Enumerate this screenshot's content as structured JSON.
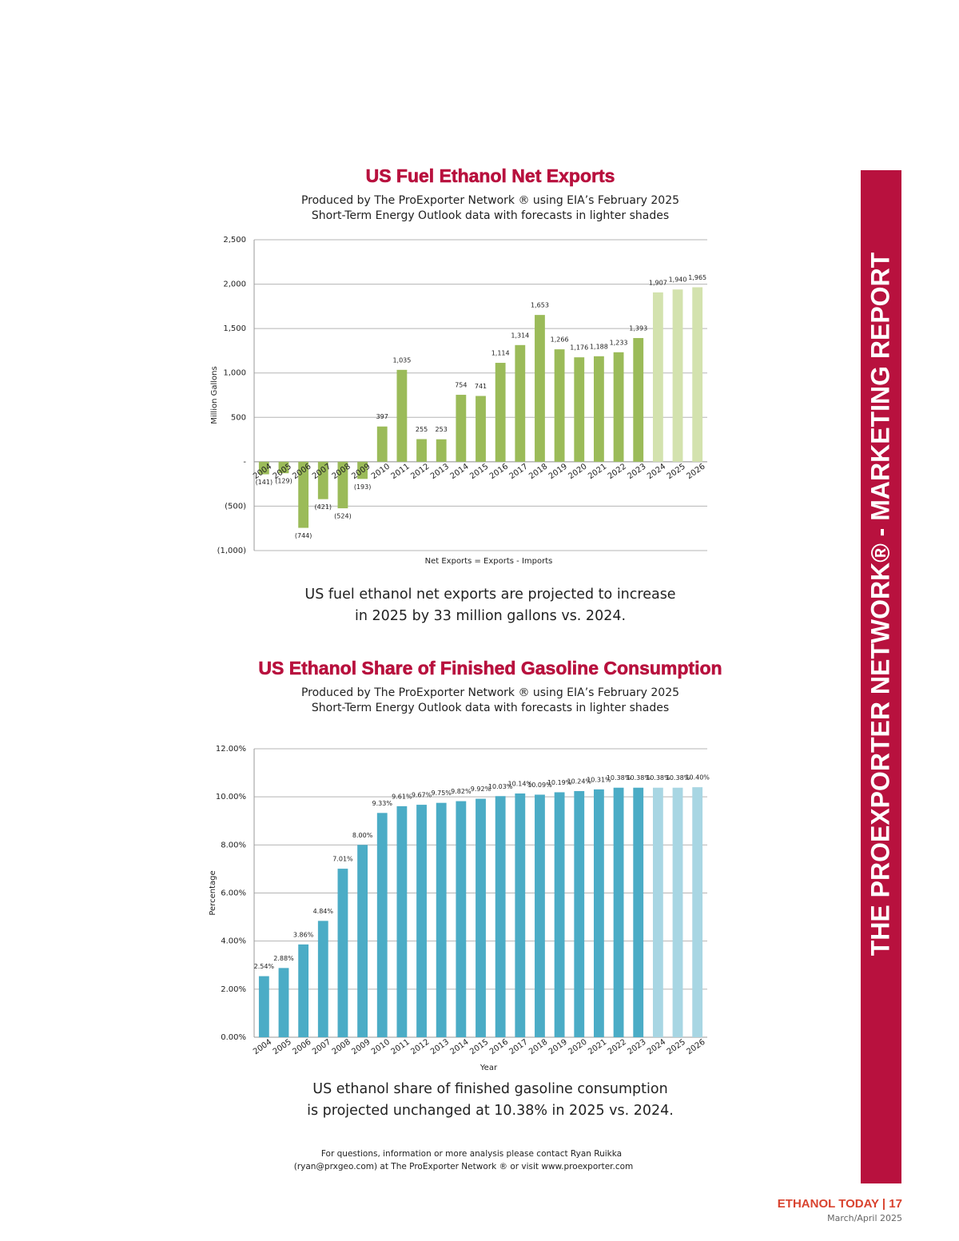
{
  "chart_data": [
    {
      "type": "bar",
      "title": "US Fuel Ethanol Net Exports",
      "subtitle": [
        "Produced by The ProExporter Network ® using EIA’s February 2025",
        "Short-Term Energy Outlook data with forecasts in lighter shades"
      ],
      "y_label": "Million Gallons",
      "x_label": "Net Exports = Exports - Imports",
      "categories": [
        "2004",
        "2005",
        "2006",
        "2007",
        "2008",
        "2009",
        "2010",
        "2011",
        "2012",
        "2013",
        "2014",
        "2015",
        "2016",
        "2017",
        "2018",
        "2019",
        "2020",
        "2021",
        "2022",
        "2023",
        "2024",
        "2025",
        "2026"
      ],
      "values": [
        -141,
        -129,
        -744,
        -421,
        -524,
        -193,
        397,
        1035,
        255,
        253,
        754,
        741,
        1114,
        1314,
        1653,
        1266,
        1176,
        1188,
        1233,
        1393,
        1907,
        1940,
        1965
      ],
      "value_labels": [
        "(141)",
        "(129)",
        "(744)",
        "(421)",
        "(524)",
        "(193)",
        "397",
        "1,035",
        "255",
        "253",
        "754",
        "741",
        "1,114",
        "1,314",
        "1,653",
        "1,266",
        "1,176",
        "1,188",
        "1,233",
        "1,393",
        "1,907",
        "1,940",
        "1,965"
      ],
      "colors": [
        "#9bbb59",
        "#9bbb59",
        "#9bbb59",
        "#9bbb59",
        "#9bbb59",
        "#9bbb59",
        "#9bbb59",
        "#9bbb59",
        "#9bbb59",
        "#9bbb59",
        "#9bbb59",
        "#9bbb59",
        "#9bbb59",
        "#9bbb59",
        "#9bbb59",
        "#9bbb59",
        "#9bbb59",
        "#9bbb59",
        "#9bbb59",
        "#9bbb59",
        "#d3e2ae",
        "#d3e2ae",
        "#d3e2ae"
      ],
      "ylim": [
        -1000,
        2500
      ],
      "yticks": [
        {
          "value": -1000,
          "label": "(1,000)"
        },
        {
          "value": -500,
          "label": "(500)"
        },
        {
          "value": 0,
          "label": "-"
        },
        500,
        {
          "value": 1000,
          "label": "1,000"
        },
        {
          "value": 1500,
          "label": "1,500"
        },
        {
          "value": 2000,
          "label": "2,000"
        },
        {
          "value": 2500,
          "label": "2,500"
        }
      ],
      "grid": true,
      "caption": [
        "US fuel ethanol net exports are projected to increase",
        "in 2025 by 33 million gallons vs. 2024."
      ]
    },
    {
      "type": "bar",
      "title": "US Ethanol Share of Finished Gasoline Consumption",
      "subtitle": [
        "Produced by The ProExporter Network ® using EIA’s February 2025",
        "Short-Term Energy Outlook data with forecasts in lighter shades"
      ],
      "y_label": "Percentage",
      "x_label": "Year",
      "categories": [
        "2004",
        "2005",
        "2006",
        "2007",
        "2008",
        "2009",
        "2010",
        "2011",
        "2012",
        "2013",
        "2014",
        "2015",
        "2016",
        "2017",
        "2018",
        "2019",
        "2020",
        "2021",
        "2022",
        "2023",
        "2024",
        "2025",
        "2026"
      ],
      "values": [
        2.54,
        2.88,
        3.86,
        4.84,
        7.01,
        8.0,
        9.33,
        9.61,
        9.67,
        9.75,
        9.82,
        9.92,
        10.03,
        10.14,
        10.09,
        10.19,
        10.24,
        10.31,
        10.38,
        10.38,
        10.38,
        10.38,
        10.4
      ],
      "value_labels": [
        "2.54%",
        "2.88%",
        "3.86%",
        "4.84%",
        "7.01%",
        "8.00%",
        "9.33%",
        "9.61%",
        "9.67%",
        "9.75%",
        "9.82%",
        "9.92%",
        "10.03%",
        "10.14%",
        "10.09%",
        "10.19%",
        "10.24%",
        "10.31%",
        "10.38%",
        "10.38%",
        "10.38%",
        "10.38%",
        "10.40%"
      ],
      "colors": [
        "#4bacc6",
        "#4bacc6",
        "#4bacc6",
        "#4bacc6",
        "#4bacc6",
        "#4bacc6",
        "#4bacc6",
        "#4bacc6",
        "#4bacc6",
        "#4bacc6",
        "#4bacc6",
        "#4bacc6",
        "#4bacc6",
        "#4bacc6",
        "#4bacc6",
        "#4bacc6",
        "#4bacc6",
        "#4bacc6",
        "#4bacc6",
        "#4bacc6",
        "#a8d6e3",
        "#a8d6e3",
        "#a8d6e3"
      ],
      "ylim": [
        0,
        12
      ],
      "yticks": [
        {
          "value": 0,
          "label": "0.00%"
        },
        {
          "value": 2,
          "label": "2.00%"
        },
        {
          "value": 4,
          "label": "4.00%"
        },
        {
          "value": 6,
          "label": "6.00%"
        },
        {
          "value": 8,
          "label": "8.00%"
        },
        {
          "value": 10,
          "label": "10.00%"
        },
        {
          "value": 12,
          "label": "12.00%"
        }
      ],
      "grid": true,
      "caption": [
        "US ethanol share of finished gasoline consumption",
        "is projected unchanged at 10.38% in 2025 vs. 2024."
      ]
    }
  ],
  "contact": [
    "For questions, information or more analysis please contact Ryan Ruikka",
    "(ryan@prxgeo.com) at The ProExporter Network ® or visit www.proexporter.com"
  ],
  "sidebar": "THE PROEXPORTER NETWORK® - MARKETING REPORT",
  "footer": {
    "publication": "ETHANOL TODAY | 17",
    "issue": "March/April 2025"
  }
}
